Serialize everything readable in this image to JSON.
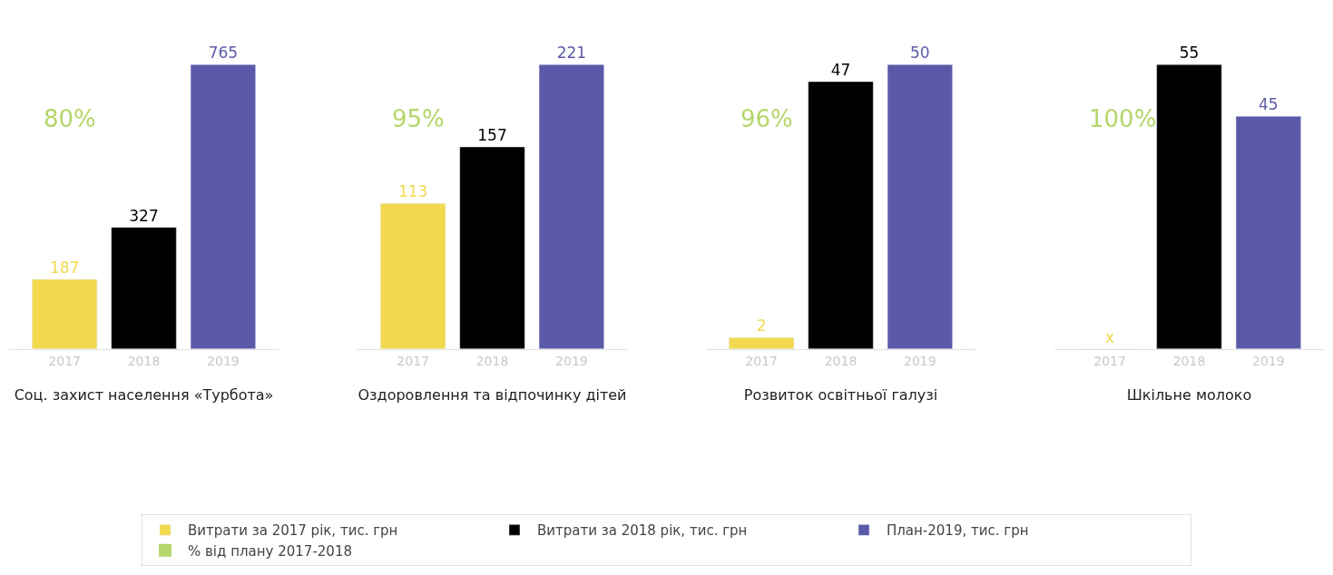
{
  "chart_data": [
    {
      "type": "bar",
      "xlabel": "Соц. захист населення «Турбота»",
      "categories": [
        "2017",
        "2018",
        "2019"
      ],
      "data_labels": true,
      "legend": "bottom",
      "annotations": [
        "80%"
      ],
      "series": [
        {
          "name": "Витрати за 2017 рік, тис. грн",
          "color": "#f2d94e",
          "values": [
            187,
            null,
            null
          ]
        },
        {
          "name": "Витрати за 2018 рік, тис. грн",
          "color": "#000000",
          "values": [
            null,
            327,
            null
          ]
        },
        {
          "name": "План-2019, тис. грн",
          "color": "#5a5aa8",
          "values": [
            null,
            null,
            765
          ]
        },
        {
          "name": "% від плану 2017-2018",
          "type": "scatter",
          "marker": "square",
          "color": "#b5d66b",
          "values": [
            null,
            null,
            null
          ]
        }
      ]
    },
    {
      "type": "bar",
      "xlabel": "Оздоровлення та відпочинку дітей",
      "categories": [
        "2017",
        "2018",
        "2019"
      ],
      "data_labels": true,
      "annotations": [
        "95%"
      ],
      "series": [
        {
          "color": "#f2d94e",
          "values": [
            113,
            null,
            null
          ]
        },
        {
          "color": "#000000",
          "values": [
            null,
            157,
            null
          ]
        },
        {
          "color": "#5a5aa8",
          "values": [
            null,
            null,
            221
          ]
        }
      ]
    },
    {
      "type": "bar",
      "xlabel": "Розвиток освітньої галузі",
      "categories": [
        "2017",
        "2018",
        "2019"
      ],
      "data_labels": true,
      "annotations": [
        "96%"
      ],
      "series": [
        {
          "color": "#f2d94e",
          "values": [
            2,
            null,
            null
          ]
        },
        {
          "color": "#000000",
          "values": [
            null,
            47,
            null
          ]
        },
        {
          "color": "#5a5aa8",
          "values": [
            null,
            null,
            50
          ]
        }
      ]
    },
    {
      "type": "bar",
      "xlabel": "Шкільне молоко",
      "categories": [
        "2017",
        "2018",
        "2019"
      ],
      "annotations": [
        "100%"
      ],
      "series": [
        {
          "color": "#f2d94e",
          "values": [
            null,
            null,
            null
          ],
          "value_labels": [
            "x",
            null,
            null
          ]
        },
        {
          "color": "#000000",
          "values": [
            null,
            55,
            null
          ],
          "value_labels": [
            null,
            "55",
            null
          ]
        },
        {
          "color": "#5a5aa8",
          "values": [
            null,
            null,
            45
          ],
          "value_labels": [
            null,
            null,
            "45"
          ]
        }
      ]
    }
  ]
}
